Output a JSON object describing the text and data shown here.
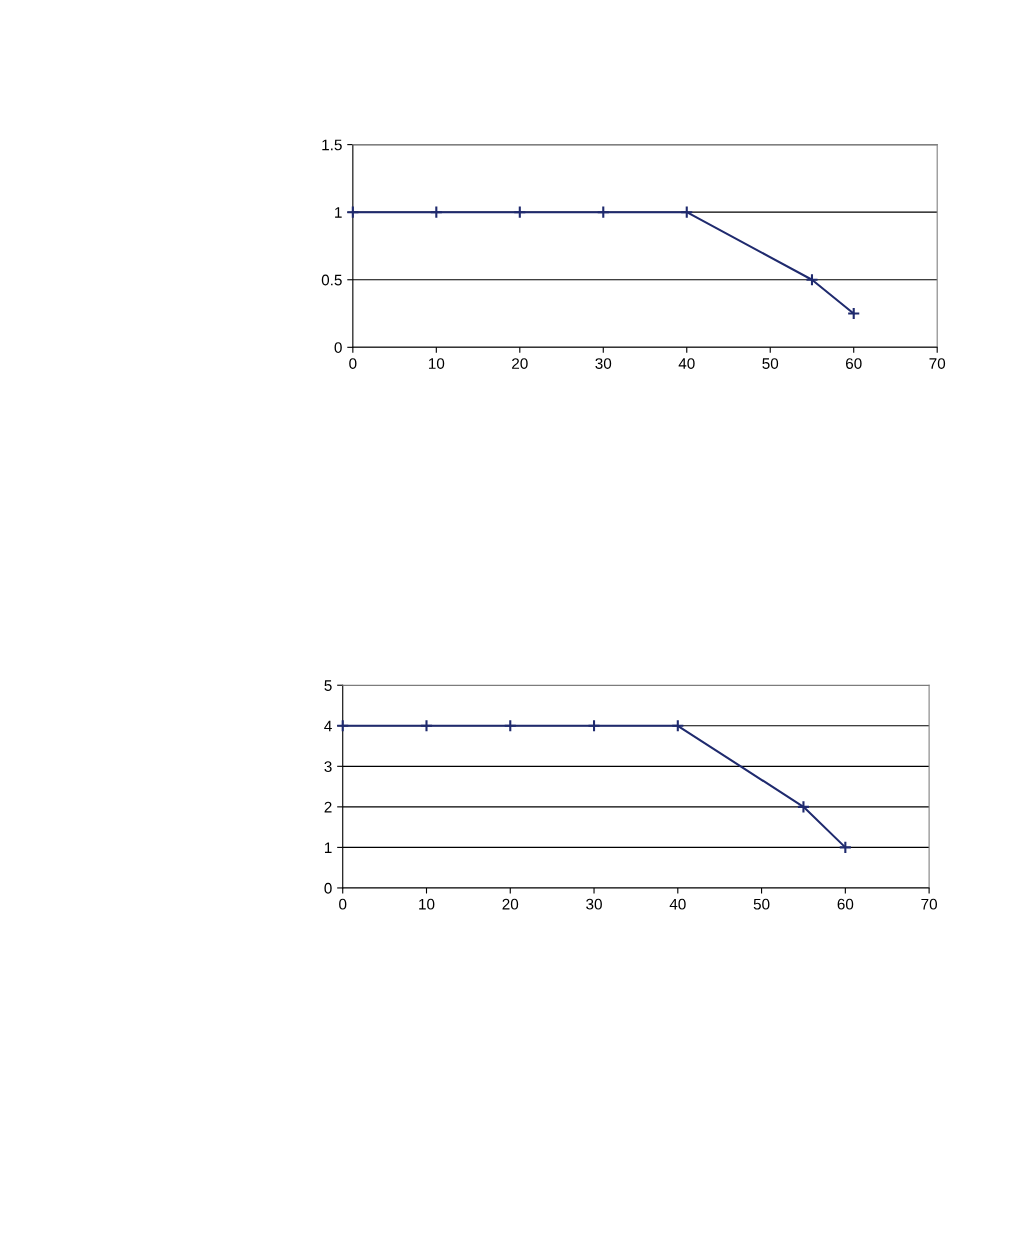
{
  "chart_data": [
    {
      "type": "line",
      "x": [
        0,
        10,
        20,
        30,
        40,
        55,
        60
      ],
      "series": [
        {
          "color": "#1f2a6e",
          "values": [
            1,
            1,
            1,
            1,
            1,
            0.5,
            0.25
          ]
        }
      ],
      "xlim": [
        0,
        70
      ],
      "xticks": [
        0,
        10,
        20,
        30,
        40,
        50,
        60,
        70
      ],
      "ylim": [
        0,
        1.5
      ],
      "yticks": [
        0,
        0.5,
        1,
        1.5
      ],
      "grid": "y",
      "marker": "cross",
      "line_style": "solid"
    },
    {
      "type": "line",
      "x": [
        0,
        10,
        20,
        30,
        40,
        55,
        60
      ],
      "series": [
        {
          "color": "#1f2a6e",
          "values": [
            4,
            4,
            4,
            4,
            4,
            2,
            1
          ]
        }
      ],
      "xlim": [
        0,
        70
      ],
      "xticks": [
        0,
        10,
        20,
        30,
        40,
        50,
        60,
        70
      ],
      "ylim": [
        0,
        5
      ],
      "yticks": [
        0,
        1,
        2,
        3,
        4,
        5
      ],
      "grid": "y",
      "marker": "cross",
      "line_style": "solid"
    }
  ]
}
